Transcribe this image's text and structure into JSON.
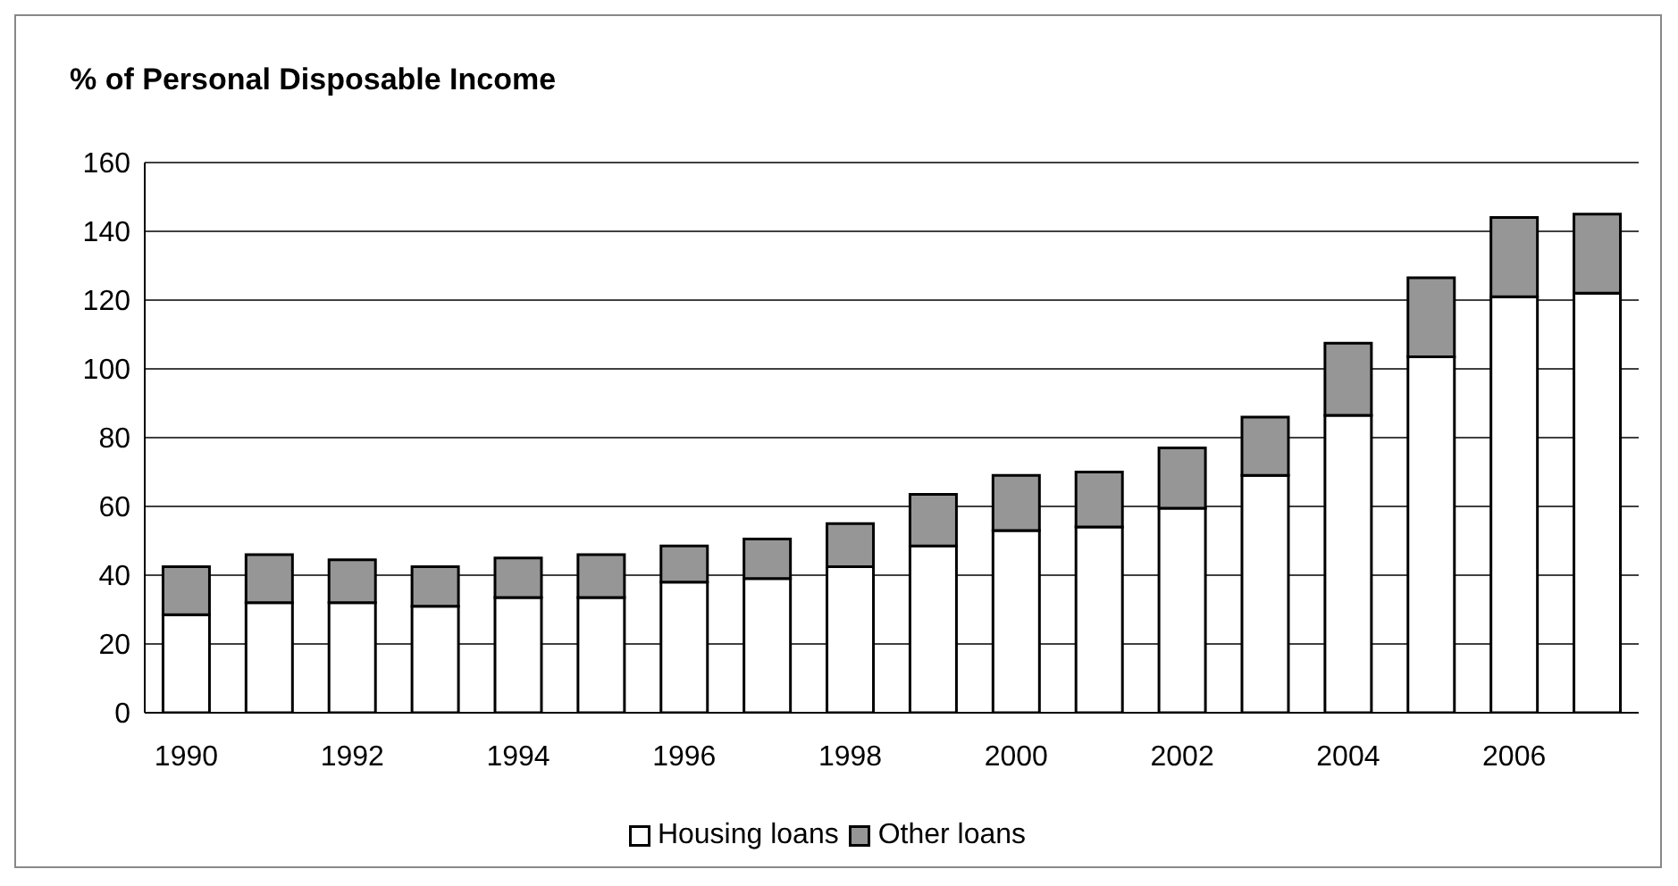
{
  "chart_data": {
    "type": "bar",
    "title": "% of Personal Disposable Income",
    "categories": [
      "1990",
      null,
      "1992",
      null,
      "1994",
      null,
      "1996",
      null,
      "1998",
      null,
      "2000",
      null,
      "2002",
      null,
      "2004",
      null,
      "2006",
      null
    ],
    "series": [
      {
        "name": "Housing loans",
        "color": "#ffffff",
        "values": [
          28.5,
          32,
          32,
          31,
          33.5,
          33.5,
          38,
          39,
          42.5,
          48.5,
          53,
          54,
          59.5,
          69,
          86.5,
          103.5,
          121,
          122
        ]
      },
      {
        "name": "Other loans",
        "color": "#969696",
        "values": [
          14,
          14,
          12.5,
          11.5,
          11.5,
          12.5,
          10.5,
          11.5,
          12.5,
          15,
          16,
          16,
          17.5,
          17,
          21,
          23,
          23,
          23
        ]
      }
    ],
    "stacked": true,
    "ylim": [
      0,
      160
    ],
    "yticks": [
      0,
      20,
      40,
      60,
      80,
      100,
      120,
      140,
      160
    ],
    "grid": "y",
    "legend": "bottom"
  }
}
